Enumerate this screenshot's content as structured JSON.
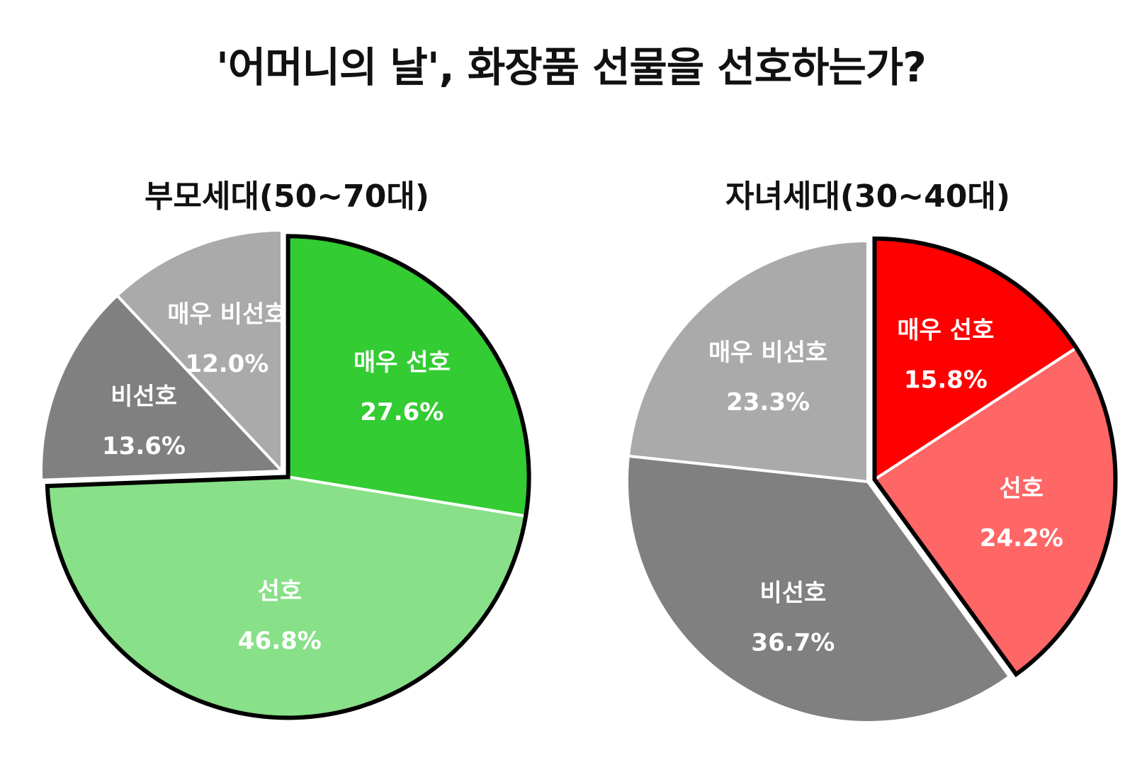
{
  "title": "'어머니의 날', 화장품 선물을 선호하는가?",
  "chart_data": [
    {
      "type": "pie",
      "title": "부모세대(50~70대)",
      "slices": [
        {
          "label": "매우 선호",
          "value": 27.6,
          "display": "27.6%",
          "color": "#33cc33",
          "text_color": "#ffffff",
          "highlight": true
        },
        {
          "label": "선호",
          "value": 46.8,
          "display": "46.8%",
          "color": "#88e088",
          "text_color": "#ffffff",
          "highlight": true
        },
        {
          "label": "비선호",
          "value": 13.6,
          "display": "13.6%",
          "color": "#808080",
          "text_color": "#ffffff",
          "highlight": false
        },
        {
          "label": "매우 비선호",
          "value": 12.0,
          "display": "12.0%",
          "color": "#aaaaaa",
          "text_color": "#ffffff",
          "highlight": false
        }
      ]
    },
    {
      "type": "pie",
      "title": "자녀세대(30~40대)",
      "slices": [
        {
          "label": "매우 선호",
          "value": 15.8,
          "display": "15.8%",
          "color": "#ff0000",
          "text_color": "#ffffff",
          "highlight": true
        },
        {
          "label": "선호",
          "value": 24.2,
          "display": "24.2%",
          "color": "#ff6666",
          "text_color": "#ffffff",
          "highlight": true
        },
        {
          "label": "비선호",
          "value": 36.7,
          "display": "36.7%",
          "color": "#808080",
          "text_color": "#ffffff",
          "highlight": false
        },
        {
          "label": "매우 비선호",
          "value": 23.3,
          "display": "23.3%",
          "color": "#aaaaaa",
          "text_color": "#ffffff",
          "highlight": false
        }
      ]
    }
  ]
}
